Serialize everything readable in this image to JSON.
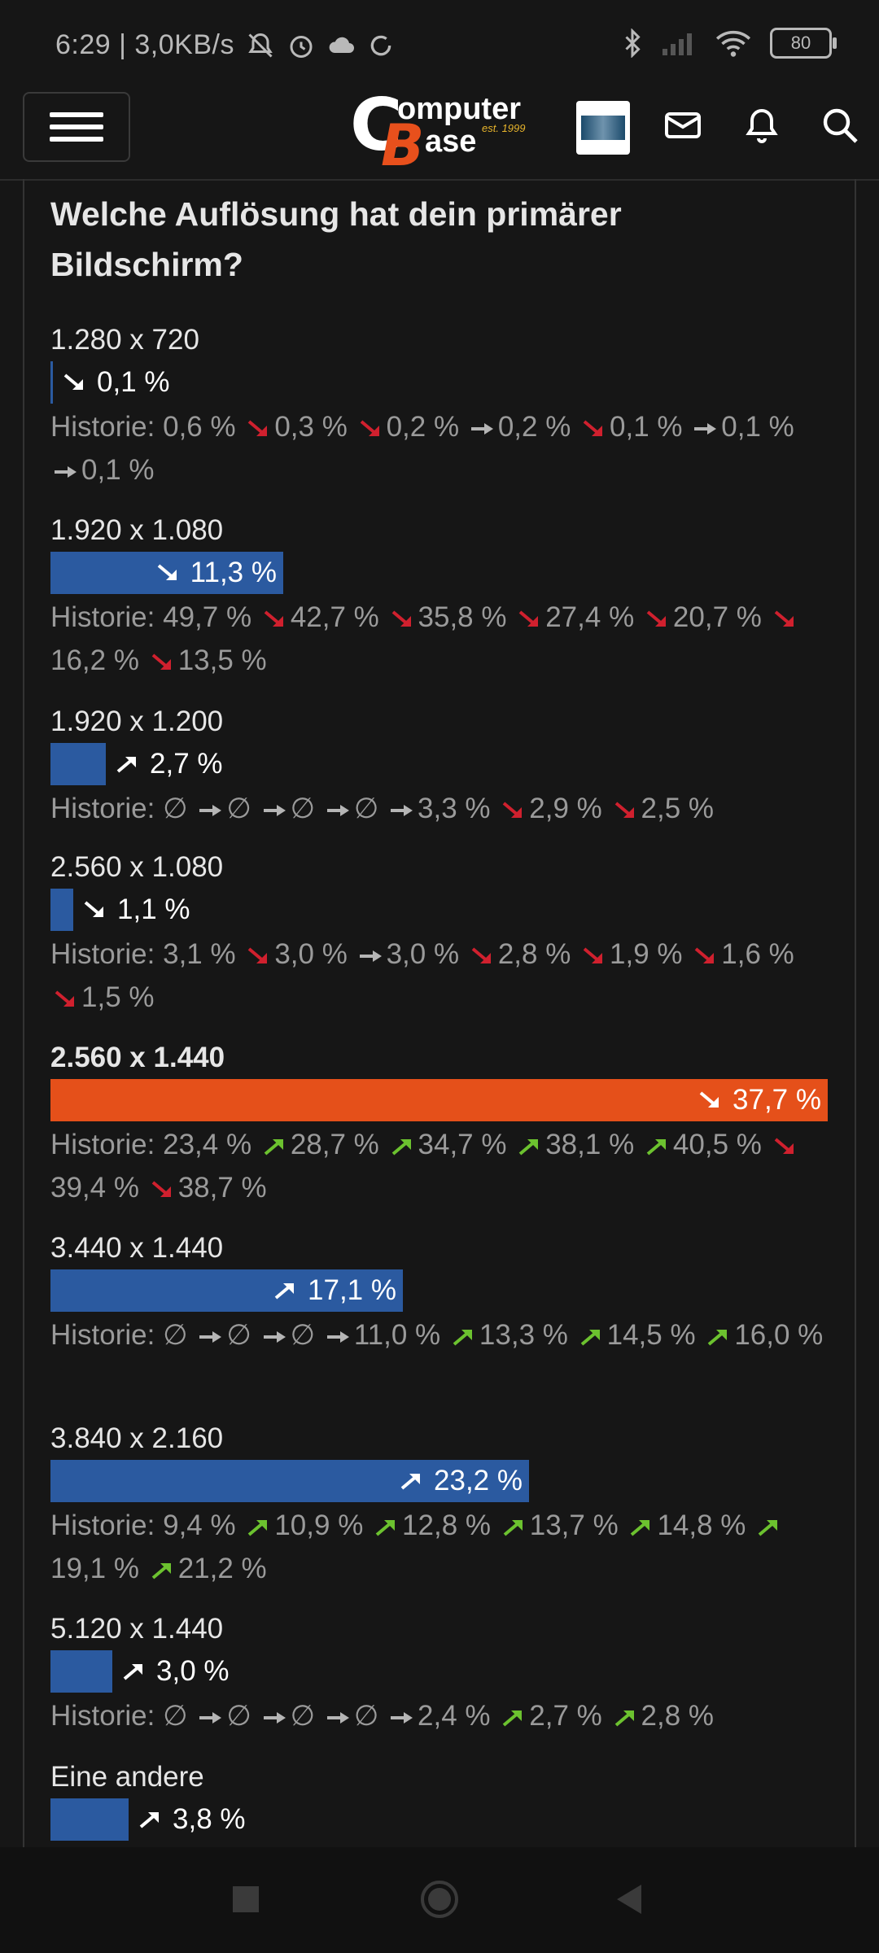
{
  "status_bar": {
    "time_info": "6:29 | 3,0KB/s",
    "battery": "80"
  },
  "header": {
    "logo_word_1": "omputer",
    "logo_word_2": "ase",
    "logo_c": "C",
    "logo_b": "B",
    "logo_est": "est. 1999"
  },
  "poll": {
    "title": "Welche Auflösung hat dein primärer Bildschirm?",
    "options": [
      {
        "label": "1.280 x 720",
        "pct": "0,1 %",
        "value": 0.1,
        "trend": "down",
        "history": [
          {
            "v": "0,6 %"
          },
          {
            "t": "down",
            "v": "0,3 %"
          },
          {
            "t": "down",
            "v": "0,2 %"
          },
          {
            "t": "flat",
            "v": "0,2 %"
          },
          {
            "t": "down",
            "v": "0,1 %"
          },
          {
            "t": "flat",
            "v": "0,1 %"
          },
          {
            "t": "flat",
            "v": "0,1 %"
          }
        ]
      },
      {
        "label": "1.920 x 1.080",
        "pct": "11,3 %",
        "value": 11.3,
        "trend": "down",
        "history": [
          {
            "v": "49,7 %"
          },
          {
            "t": "down",
            "v": "42,7 %"
          },
          {
            "t": "down",
            "v": "35,8 %"
          },
          {
            "t": "down",
            "v": "27,4 %"
          },
          {
            "t": "down",
            "v": "20,7 %"
          },
          {
            "t": "down",
            "v": "16,2 %"
          },
          {
            "t": "down",
            "v": "13,5 %"
          }
        ]
      },
      {
        "label": "1.920 x 1.200",
        "pct": "2,7 %",
        "value": 2.7,
        "trend": "up",
        "history": [
          {
            "v": "∅"
          },
          {
            "t": "flat",
            "v": "∅"
          },
          {
            "t": "flat",
            "v": "∅"
          },
          {
            "t": "flat",
            "v": "∅"
          },
          {
            "t": "flat",
            "v": "3,3 %"
          },
          {
            "t": "down",
            "v": "2,9 %"
          },
          {
            "t": "down",
            "v": "2,5 %"
          }
        ]
      },
      {
        "label": "2.560 x 1.080",
        "pct": "1,1 %",
        "value": 1.1,
        "trend": "down",
        "history": [
          {
            "v": "3,1 %"
          },
          {
            "t": "down",
            "v": "3,0 %"
          },
          {
            "t": "flat",
            "v": "3,0 %"
          },
          {
            "t": "down",
            "v": "2,8 %"
          },
          {
            "t": "down",
            "v": "1,9 %"
          },
          {
            "t": "down",
            "v": "1,6 %"
          },
          {
            "t": "down",
            "v": "1,5 %"
          }
        ]
      },
      {
        "label": "2.560 x 1.440",
        "pct": "37,7 %",
        "value": 37.7,
        "trend": "down",
        "leader": true,
        "history": [
          {
            "v": "23,4 %"
          },
          {
            "t": "up",
            "v": "28,7 %"
          },
          {
            "t": "up",
            "v": "34,7 %"
          },
          {
            "t": "up",
            "v": "38,1 %"
          },
          {
            "t": "up",
            "v": "40,5 %"
          },
          {
            "t": "down",
            "v": "39,4 %"
          },
          {
            "t": "down",
            "v": "38,7 %"
          }
        ]
      },
      {
        "label": "3.440 x 1.440",
        "pct": "17,1 %",
        "value": 17.1,
        "trend": "up",
        "history": [
          {
            "v": "∅"
          },
          {
            "t": "flat",
            "v": "∅"
          },
          {
            "t": "flat",
            "v": "∅"
          },
          {
            "t": "flat",
            "v": "11,0 %"
          },
          {
            "t": "up",
            "v": "13,3 %"
          },
          {
            "t": "up",
            "v": "14,5 %"
          },
          {
            "t": "up",
            "v": "16,0 %"
          }
        ]
      },
      {
        "label": "3.840 x 2.160",
        "pct": "23,2 %",
        "value": 23.2,
        "trend": "up",
        "history": [
          {
            "v": "9,4 %"
          },
          {
            "t": "up",
            "v": "10,9 %"
          },
          {
            "t": "up",
            "v": "12,8 %"
          },
          {
            "t": "up",
            "v": "13,7 %"
          },
          {
            "t": "up",
            "v": "14,8 %"
          },
          {
            "t": "up",
            "v": "19,1 %"
          },
          {
            "t": "up",
            "v": "21,2 %"
          }
        ]
      },
      {
        "label": "5.120 x 1.440",
        "pct": "3,0 %",
        "value": 3.0,
        "trend": "up",
        "history": [
          {
            "v": "∅"
          },
          {
            "t": "flat",
            "v": "∅"
          },
          {
            "t": "flat",
            "v": "∅"
          },
          {
            "t": "flat",
            "v": "∅"
          },
          {
            "t": "flat",
            "v": "2,4 %"
          },
          {
            "t": "up",
            "v": "2,7 %"
          },
          {
            "t": "up",
            "v": "2,8 %"
          }
        ]
      },
      {
        "label": "Eine andere",
        "pct": "3,8 %",
        "value": 3.8,
        "trend": "up",
        "history": []
      }
    ],
    "history_label": "Historie:"
  },
  "colors": {
    "bar": "#2b5aa0",
    "bar_leader": "#e5501a",
    "arrow_up": "#6cc22f",
    "arrow_down": "#d0202e",
    "arrow_flat": "#b5b5b5"
  }
}
